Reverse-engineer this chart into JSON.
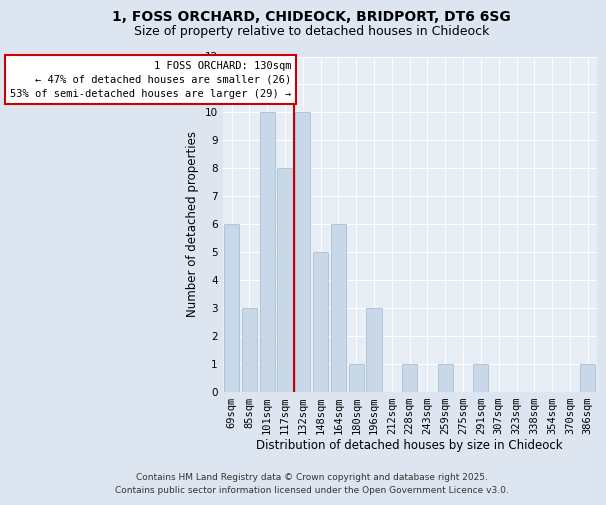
{
  "title1": "1, FOSS ORCHARD, CHIDEOCK, BRIDPORT, DT6 6SG",
  "title2": "Size of property relative to detached houses in Chideock",
  "xlabel": "Distribution of detached houses by size in Chideock",
  "ylabel": "Number of detached properties",
  "categories": [
    "69sqm",
    "85sqm",
    "101sqm",
    "117sqm",
    "132sqm",
    "148sqm",
    "164sqm",
    "180sqm",
    "196sqm",
    "212sqm",
    "228sqm",
    "243sqm",
    "259sqm",
    "275sqm",
    "291sqm",
    "307sqm",
    "323sqm",
    "338sqm",
    "354sqm",
    "370sqm",
    "386sqm"
  ],
  "values": [
    6,
    3,
    10,
    8,
    10,
    5,
    6,
    1,
    3,
    0,
    1,
    0,
    1,
    0,
    1,
    0,
    0,
    0,
    0,
    0,
    1
  ],
  "bar_color": "#c8d8e8",
  "bar_edge_color": "#a0b8cc",
  "vline_index": 4,
  "vline_color": "#cc0000",
  "annotation_text": "1 FOSS ORCHARD: 130sqm\n← 47% of detached houses are smaller (26)\n53% of semi-detached houses are larger (29) →",
  "annotation_box_facecolor": "#ffffff",
  "annotation_box_edgecolor": "#cc0000",
  "footer": "Contains HM Land Registry data © Crown copyright and database right 2025.\nContains public sector information licensed under the Open Government Licence v3.0.",
  "ylim": [
    0,
    12
  ],
  "yticks": [
    0,
    1,
    2,
    3,
    4,
    5,
    6,
    7,
    8,
    9,
    10,
    11,
    12
  ],
  "bg_color": "#dde6f0",
  "plot_bg_color": "#e8eef5",
  "grid_color": "#ffffff",
  "title1_fontsize": 10,
  "title2_fontsize": 9,
  "ylabel_fontsize": 8.5,
  "xlabel_fontsize": 8.5,
  "tick_fontsize": 7.5,
  "annot_fontsize": 7.5,
  "footer_fontsize": 6.5
}
